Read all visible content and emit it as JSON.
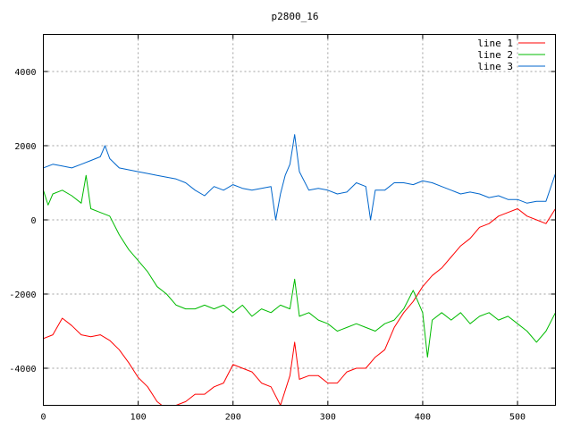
{
  "chart_data": {
    "type": "line",
    "title": "p2800_16",
    "xlabel": "",
    "ylabel": "",
    "xlim": [
      0,
      540
    ],
    "ylim": [
      -5000,
      5000
    ],
    "x_ticks": [
      0,
      100,
      200,
      300,
      400,
      500
    ],
    "y_ticks": [
      -4000,
      -2000,
      0,
      2000,
      4000
    ],
    "grid": true,
    "legend_position": "top-right",
    "series": [
      {
        "name": "line 1",
        "color": "#ff0000",
        "x": [
          0,
          10,
          20,
          30,
          40,
          50,
          60,
          70,
          80,
          90,
          100,
          110,
          120,
          130,
          140,
          150,
          160,
          170,
          180,
          190,
          200,
          210,
          220,
          230,
          240,
          250,
          260,
          265,
          270,
          280,
          290,
          300,
          310,
          320,
          330,
          340,
          350,
          360,
          370,
          380,
          390,
          400,
          410,
          420,
          430,
          440,
          450,
          460,
          470,
          480,
          490,
          500,
          510,
          520,
          530,
          540
        ],
        "values": [
          -3200,
          -3100,
          -2650,
          -2850,
          -3100,
          -3150,
          -3100,
          -3250,
          -3500,
          -3850,
          -4250,
          -4500,
          -4900,
          -5100,
          -5000,
          -4900,
          -4700,
          -4700,
          -4500,
          -4400,
          -3900,
          -4000,
          -4100,
          -4400,
          -4500,
          -5000,
          -4200,
          -3300,
          -4300,
          -4200,
          -4200,
          -4400,
          -4400,
          -4100,
          -4000,
          -4000,
          -3700,
          -3500,
          -2900,
          -2500,
          -2200,
          -1800,
          -1500,
          -1300,
          -1000,
          -700,
          -500,
          -200,
          -100,
          100,
          200,
          300,
          100,
          0,
          -100,
          300
        ]
      },
      {
        "name": "line 2",
        "color": "#00bb00",
        "x": [
          0,
          5,
          10,
          20,
          30,
          40,
          45,
          50,
          60,
          70,
          80,
          90,
          100,
          110,
          120,
          130,
          140,
          150,
          160,
          170,
          180,
          190,
          200,
          210,
          220,
          230,
          240,
          250,
          260,
          265,
          270,
          280,
          290,
          300,
          310,
          320,
          330,
          340,
          350,
          360,
          370,
          380,
          390,
          400,
          405,
          410,
          420,
          430,
          440,
          450,
          460,
          470,
          480,
          490,
          500,
          510,
          520,
          530,
          540
        ],
        "values": [
          800,
          400,
          700,
          800,
          650,
          450,
          1200,
          300,
          200,
          100,
          -400,
          -800,
          -1100,
          -1400,
          -1800,
          -2000,
          -2300,
          -2400,
          -2400,
          -2300,
          -2400,
          -2300,
          -2500,
          -2300,
          -2600,
          -2400,
          -2500,
          -2300,
          -2400,
          -1600,
          -2600,
          -2500,
          -2700,
          -2800,
          -3000,
          -2900,
          -2800,
          -2900,
          -3000,
          -2800,
          -2700,
          -2400,
          -1900,
          -2500,
          -3700,
          -2700,
          -2500,
          -2700,
          -2500,
          -2800,
          -2600,
          -2500,
          -2700,
          -2600,
          -2800,
          -3000,
          -3300,
          -3000,
          -2500
        ]
      },
      {
        "name": "line 3",
        "color": "#0066cc",
        "x": [
          0,
          10,
          20,
          30,
          40,
          50,
          60,
          65,
          70,
          80,
          90,
          100,
          110,
          120,
          130,
          140,
          150,
          160,
          170,
          180,
          190,
          200,
          210,
          220,
          230,
          240,
          245,
          250,
          255,
          260,
          265,
          270,
          280,
          290,
          300,
          310,
          320,
          330,
          340,
          345,
          350,
          360,
          370,
          380,
          390,
          400,
          410,
          420,
          430,
          440,
          450,
          460,
          470,
          480,
          490,
          500,
          510,
          520,
          530,
          540
        ],
        "values": [
          1400,
          1500,
          1450,
          1400,
          1500,
          1600,
          1700,
          2000,
          1650,
          1400,
          1350,
          1300,
          1250,
          1200,
          1150,
          1100,
          1000,
          800,
          650,
          900,
          800,
          950,
          850,
          800,
          850,
          900,
          0,
          700,
          1200,
          1500,
          2300,
          1300,
          800,
          850,
          800,
          700,
          750,
          1000,
          900,
          0,
          800,
          800,
          1000,
          1000,
          950,
          1050,
          1000,
          900,
          800,
          700,
          750,
          700,
          600,
          650,
          550,
          550,
          450,
          500,
          500,
          1250
        ]
      }
    ]
  }
}
